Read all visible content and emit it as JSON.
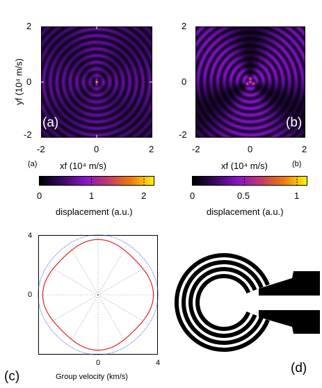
{
  "panel_a": {
    "y_ticks": [
      "2",
      "0",
      "-2"
    ],
    "x_ticks": [
      "-2",
      "0",
      "2"
    ],
    "ylabel": "yf (10⁴ m/s)",
    "xlabel": "xf (10⁴ m/s)",
    "inner_label": "(a)",
    "outer_label": "(a)",
    "colorbar": {
      "ticks": [
        "0",
        "1",
        "2"
      ],
      "label": "displacement (a.u.)",
      "max": 2.2
    }
  },
  "panel_b": {
    "y_ticks": [
      "2",
      "0",
      "-2"
    ],
    "x_ticks": [
      "-2",
      "0",
      "2"
    ],
    "xlabel": "xf (10⁴ m/s)",
    "inner_label": "(b)",
    "outer_label": "(b)",
    "colorbar": {
      "ticks": [
        "0",
        "0.5",
        "1"
      ],
      "label": "displacement (a.u.)",
      "max": 1.1
    }
  },
  "panel_c": {
    "y_ticks": [
      "4",
      "0"
    ],
    "x_ticks": [
      "0",
      "4"
    ],
    "xlabel": "Group velocity (km/s)",
    "label": "(c)",
    "colors": {
      "inner_curve": "#e8201c",
      "outer_curve": "#1f3fd6",
      "spokes": "#888888"
    }
  },
  "panel_d": {
    "label": "(d)"
  },
  "colormap": [
    "#000000",
    "#3a0a66",
    "#8a14c8",
    "#c43a6a",
    "#ef7a10",
    "#fff200"
  ],
  "chart_data": [
    {
      "type": "heatmap",
      "title": "",
      "xlabel": "xf (10⁴ m/s)",
      "ylabel": "yf (10⁴ m/s)",
      "xlim": [
        -2,
        2
      ],
      "ylim": [
        -2,
        2
      ],
      "colorbar_range": [
        0,
        2.2
      ],
      "colorbar_label": "displacement (a.u.)"
    },
    {
      "type": "heatmap",
      "title": "",
      "xlabel": "xf (10⁴ m/s)",
      "ylabel": "",
      "xlim": [
        -2,
        2
      ],
      "ylim": [
        -2,
        2
      ],
      "colorbar_range": [
        0,
        1.1
      ],
      "colorbar_label": "displacement (a.u.)"
    },
    {
      "type": "line",
      "title": "",
      "xlabel": "Group velocity (km/s)",
      "ylabel": "",
      "xlim": [
        -4,
        4
      ],
      "ylim": [
        -4,
        4
      ],
      "series": [
        {
          "values": "red inner curve, radius ≈ 3.5 km/s with 4-fold anisotropy"
        },
        {
          "values": "blue dotted outer curve, radius ≈ 3.9 km/s"
        }
      ]
    }
  ]
}
